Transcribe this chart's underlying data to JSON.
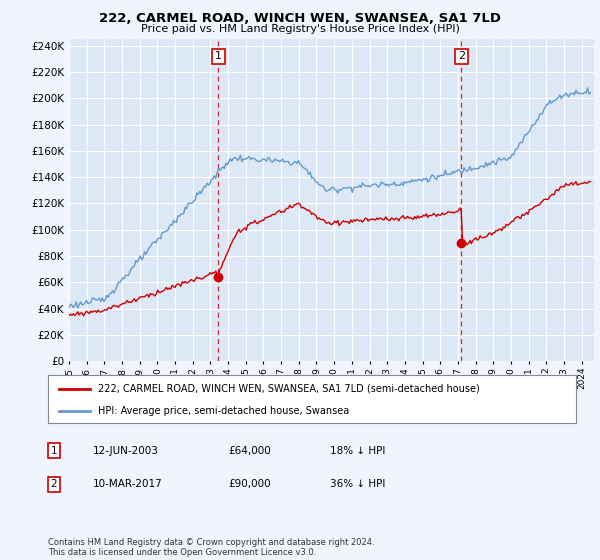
{
  "title": "222, CARMEL ROAD, WINCH WEN, SWANSEA, SA1 7LD",
  "subtitle": "Price paid vs. HM Land Registry's House Price Index (HPI)",
  "ytick_values": [
    0,
    20000,
    40000,
    60000,
    80000,
    100000,
    120000,
    140000,
    160000,
    180000,
    200000,
    220000,
    240000
  ],
  "ylim": [
    0,
    250000
  ],
  "xlim_start": 1995.0,
  "xlim_end": 2024.5,
  "fig_bg_color": "#dce8f5",
  "plot_bg_color": "#dce8f5",
  "grid_color": "#ffffff",
  "hpi_color": "#6699cc",
  "price_color": "#cc0000",
  "transaction1_date": "12-JUN-2003",
  "transaction1_price": 64000,
  "transaction1_year": 2003.45,
  "transaction1_pct": "18%",
  "transaction2_date": "10-MAR-2017",
  "transaction2_price": 90000,
  "transaction2_year": 2017.19,
  "transaction2_pct": "36%",
  "legend_label_red": "222, CARMEL ROAD, WINCH WEN, SWANSEA, SA1 7LD (semi-detached house)",
  "legend_label_blue": "HPI: Average price, semi-detached house, Swansea",
  "footer": "Contains HM Land Registry data © Crown copyright and database right 2024.\nThis data is licensed under the Open Government Licence v3.0."
}
